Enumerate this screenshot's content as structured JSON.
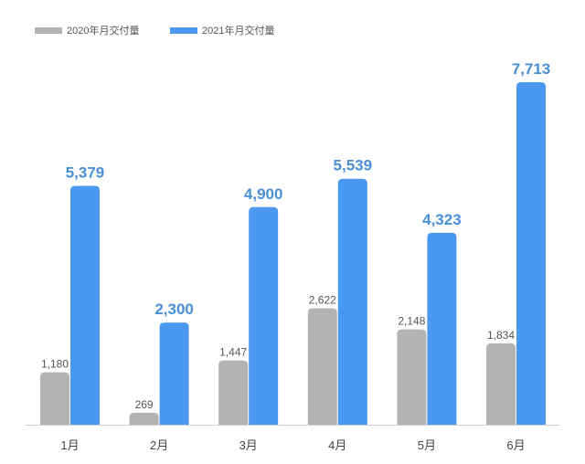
{
  "chart_data": {
    "type": "bar",
    "categories": [
      "1月",
      "2月",
      "3月",
      "4月",
      "5月",
      "6月"
    ],
    "series": [
      {
        "name": "2020年月交付量",
        "values": [
          1180,
          269,
          1447,
          2622,
          2148,
          1834
        ],
        "labels": [
          "1,180",
          "269",
          "1,447",
          "2,622",
          "2,148",
          "1,834"
        ],
        "color": "#b3b3b3"
      },
      {
        "name": "2021年月交付量",
        "values": [
          5379,
          2300,
          4900,
          5539,
          4323,
          7713
        ],
        "labels": [
          "5,379",
          "2,300",
          "4,900",
          "5,539",
          "4,323",
          "7,713"
        ],
        "color": "#4a98ef"
      }
    ],
    "title": "",
    "xlabel": "",
    "ylabel": "",
    "ylim": [
      0,
      7713
    ],
    "grid": false,
    "legend_position": "top-left"
  }
}
